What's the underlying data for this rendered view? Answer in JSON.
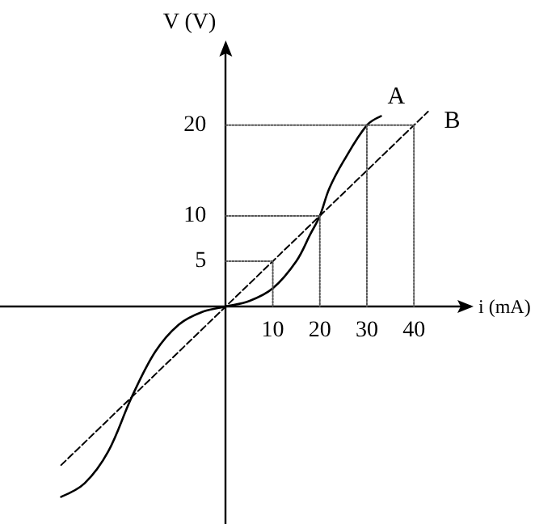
{
  "chart_data": {
    "type": "line",
    "xlabel": "i (mA)",
    "ylabel": "V (V)",
    "xlim": [
      -48,
      52
    ],
    "ylim": [
      -24,
      29
    ],
    "xticks": [
      10,
      20,
      30,
      40
    ],
    "yticks": [
      5,
      10,
      20
    ],
    "grid": false,
    "marker": "none",
    "series": [
      {
        "name": "A",
        "color": "#000000",
        "line_style": "solid",
        "x": [
          -35,
          -30,
          -25,
          -20,
          -15,
          -10,
          -5,
          0,
          5,
          10,
          15,
          18,
          20,
          22,
          25,
          30,
          33
        ],
        "values": [
          -21,
          -19.5,
          -16,
          -10,
          -5,
          -2,
          -0.6,
          0,
          0.6,
          2,
          5,
          8,
          10,
          13,
          16,
          20,
          21
        ]
      },
      {
        "name": "B",
        "color": "#000000",
        "line_style": "dashed",
        "x": [
          -35,
          43
        ],
        "values": [
          -17.5,
          21.5
        ]
      },
      {
        "color": "#555555",
        "line_style": "dotted",
        "x": [
          0,
          10,
          10
        ],
        "values": [
          5,
          5,
          0
        ]
      },
      {
        "color": "#555555",
        "line_style": "dotted",
        "x": [
          0,
          20,
          20
        ],
        "values": [
          10,
          10,
          0
        ]
      },
      {
        "color": "#555555",
        "line_style": "dotted",
        "x": [
          0,
          40,
          40
        ],
        "values": [
          20,
          20,
          0
        ]
      },
      {
        "color": "#555555",
        "line_style": "dotted",
        "x": [
          30,
          30
        ],
        "values": [
          20,
          0
        ]
      }
    ]
  }
}
